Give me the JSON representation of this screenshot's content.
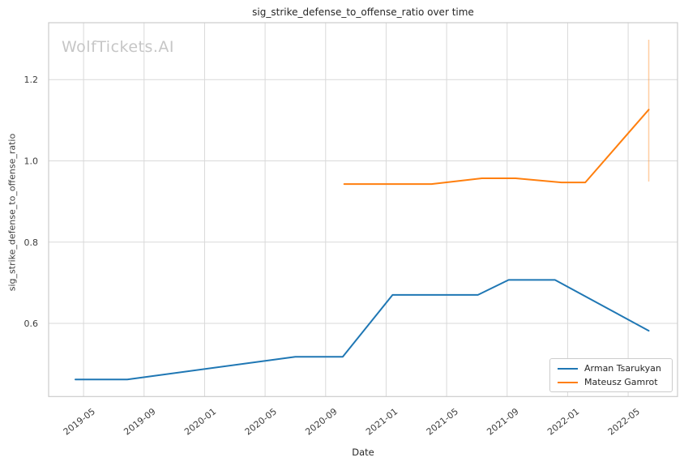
{
  "colors": {
    "grid": "#d9d9d9",
    "spine": "#cccccc",
    "title_text": "#262626",
    "tick_text": "#3d3d3d",
    "watermark": "#c6c6c6",
    "background": "#ffffff"
  },
  "watermark": "WolfTickets.AI",
  "chart_data": {
    "type": "line",
    "title": "sig_strike_defense_to_offense_ratio over time",
    "xlabel": "Date",
    "ylabel": "sig_strike_defense_to_offense_ratio",
    "grid": true,
    "legend_position": "lower right",
    "x_tick_labels": [
      "2019-05",
      "2019-09",
      "2020-01",
      "2020-05",
      "2020-09",
      "2021-01",
      "2021-05",
      "2021-09",
      "2022-01",
      "2022-05"
    ],
    "y_ticks": [
      0.6,
      0.8,
      1.0,
      1.2
    ],
    "xlim": [
      "2019-02-22",
      "2022-08-09"
    ],
    "ylim": [
      0.42,
      1.34
    ],
    "series": [
      {
        "name": "Arman Tsarukyan",
        "color": "#1f77b4",
        "points": [
          [
            "2019-04-15",
            0.462
          ],
          [
            "2019-07-28",
            0.462
          ],
          [
            "2020-07-01",
            0.518
          ],
          [
            "2020-10-05",
            0.518
          ],
          [
            "2021-01-14",
            0.67
          ],
          [
            "2021-07-03",
            0.67
          ],
          [
            "2021-09-04",
            0.707
          ],
          [
            "2021-12-06",
            0.707
          ],
          [
            "2022-06-12",
            0.582
          ]
        ]
      },
      {
        "name": "Mateusz Gamrot",
        "color": "#ff7f0e",
        "points": [
          [
            "2020-10-08",
            0.943
          ],
          [
            "2021-04-01",
            0.943
          ],
          [
            "2021-07-11",
            0.957
          ],
          [
            "2021-09-18",
            0.957
          ],
          [
            "2021-12-19",
            0.947
          ],
          [
            "2022-02-06",
            0.947
          ],
          [
            "2022-06-12",
            1.126
          ]
        ]
      }
    ],
    "error_bars": [
      {
        "series": "Mateusz Gamrot",
        "x": "2022-06-12",
        "low": 0.949,
        "high": 1.298
      }
    ]
  }
}
